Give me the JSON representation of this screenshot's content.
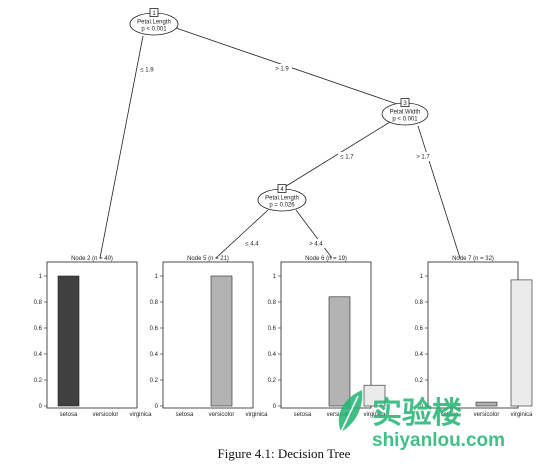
{
  "figure": {
    "caption": "Figure 4.1: Decision Tree",
    "watermark": {
      "cn": "实验楼",
      "en": "shiyanlou.com",
      "color": "#22b573"
    }
  },
  "tree": {
    "inner_nodes": [
      {
        "id": "1",
        "var": "Petal.Length",
        "p": "p < 0.001"
      },
      {
        "id": "3",
        "var": "Petal.Width",
        "p": "p < 0.001"
      },
      {
        "id": "4",
        "var": "Petal.Length",
        "p": "p = 0.026"
      }
    ],
    "edges": [
      {
        "label": "≤ 1.9"
      },
      {
        "label": "> 1.9"
      },
      {
        "label": "≤ 1.7"
      },
      {
        "label": "> 1.7"
      },
      {
        "label": "≤ 4.4"
      },
      {
        "label": "> 4.4"
      }
    ],
    "y_ticks": [
      "0",
      "0.2",
      "0.4",
      "0.6",
      "0.8",
      "1"
    ],
    "classes": [
      "setosa",
      "versicolor",
      "virginica"
    ],
    "class_colors": [
      "#404040",
      "#b3b3b3",
      "#ebebeb"
    ],
    "terminal_nodes": [
      {
        "title": "Node 2 (n = 40)",
        "values": [
          1.0,
          0.0,
          0.0
        ]
      },
      {
        "title": "Node 5 (n = 21)",
        "values": [
          0.0,
          1.0,
          0.0
        ]
      },
      {
        "title": "Node 6 (n = 19)",
        "values": [
          0.0,
          0.84,
          0.16
        ]
      },
      {
        "title": "Node 7 (n = 32)",
        "values": [
          0.0,
          0.03,
          0.97
        ]
      }
    ]
  }
}
